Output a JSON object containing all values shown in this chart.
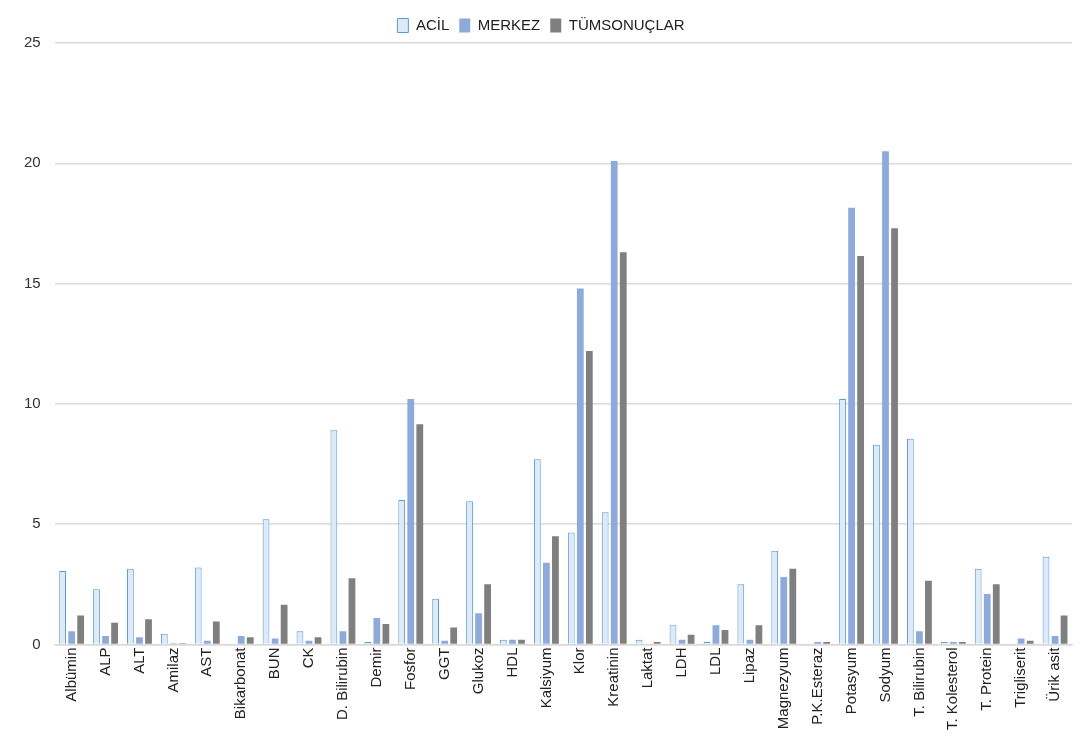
{
  "chart_data": {
    "type": "bar",
    "categories": [
      "Albümin",
      "ALP",
      "ALT",
      "Amilaz",
      "AST",
      "Bikarbonat",
      "BUN",
      "CK",
      "D. Bilirubin",
      "Demir",
      "Fosfor",
      "GGT",
      "Glukoz",
      "HDL",
      "Kalsiyum",
      "Klor",
      "Kreatinin",
      "Laktat",
      "LDH",
      "LDL",
      "Lipaz",
      "Magnezyum",
      "P.K.Esteraz",
      "Potasyum",
      "Sodyum",
      "T. Bilirubin",
      "T. Kolesterol",
      "T. Protein",
      "Trigliserit",
      "Ürik asit"
    ],
    "series": [
      {
        "name": "ACİL",
        "color": "#deebf7",
        "values": [
          3.05,
          2.3,
          3.15,
          0.45,
          3.2,
          null,
          5.2,
          0.55,
          8.9,
          0.1,
          6.0,
          1.9,
          5.95,
          0.2,
          7.7,
          4.65,
          5.5,
          0.2,
          0.8,
          0.1,
          2.5,
          3.9,
          null,
          10.2,
          8.3,
          8.55,
          0.1,
          3.15,
          null,
          3.65
        ]
      },
      {
        "name": "MERKEZ",
        "color": "#8eaadb",
        "values": [
          0.55,
          0.35,
          0.3,
          0.05,
          0.15,
          0.35,
          0.25,
          0.15,
          0.55,
          1.1,
          10.2,
          0.15,
          1.3,
          0.2,
          3.4,
          14.8,
          20.1,
          null,
          0.2,
          0.8,
          0.2,
          2.8,
          0.1,
          18.15,
          20.5,
          0.55,
          0.1,
          2.1,
          0.25,
          0.35
        ]
      },
      {
        "name": "TÜMSONUÇLAR",
        "color": "#7f7f7f",
        "values": [
          1.2,
          0.9,
          1.05,
          0.05,
          0.95,
          0.3,
          1.65,
          0.3,
          2.75,
          0.85,
          9.15,
          0.7,
          2.5,
          0.2,
          4.5,
          12.2,
          16.3,
          0.1,
          0.4,
          0.6,
          0.8,
          3.15,
          0.1,
          16.15,
          17.3,
          2.65,
          0.1,
          2.5,
          0.15,
          1.2
        ]
      }
    ],
    "ylim": [
      0,
      25
    ],
    "yticks": [
      0,
      5,
      10,
      15,
      20,
      25
    ],
    "grid": "y",
    "legend": "top"
  }
}
